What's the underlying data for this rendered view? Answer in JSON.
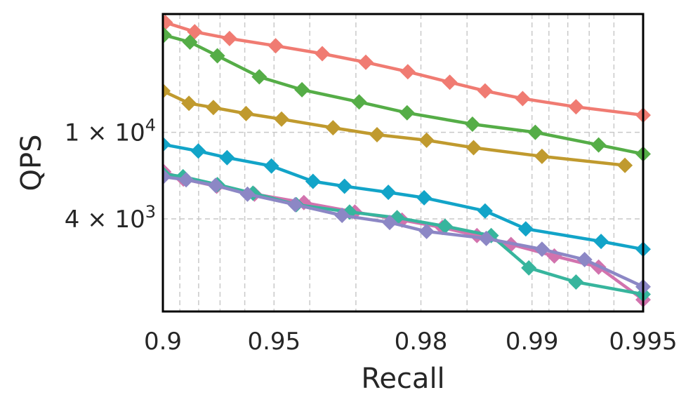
{
  "chart_data": {
    "type": "line",
    "title": "",
    "xlabel": "Recall",
    "ylabel": "QPS",
    "x_scale": "recall-log",
    "y_scale": "log",
    "xlim": [
      0.9,
      0.995
    ],
    "ylim": [
      1500,
      35000
    ],
    "grid": true,
    "x_ticks": [
      {
        "value": 0.9,
        "label": "0.9"
      },
      {
        "value": 0.95,
        "label": "0.95"
      },
      {
        "value": 0.98,
        "label": "0.98"
      },
      {
        "value": 0.99,
        "label": "0.99"
      },
      {
        "value": 0.995,
        "label": "0.995"
      }
    ],
    "x_minor_ticks": [
      0.91,
      0.92,
      0.93,
      0.94,
      0.96,
      0.97,
      0.985,
      0.991,
      0.992,
      0.993,
      0.994
    ],
    "y_ticks": [
      {
        "value": 10000,
        "label_base": "1 × 10",
        "label_exp": "4"
      },
      {
        "value": 4000,
        "label_base": "4 × 10",
        "label_exp": "3"
      }
    ],
    "marker": "diamond",
    "series": [
      {
        "color": "#f07b72",
        "x": [
          0.9015,
          0.918,
          0.934,
          0.9505,
          0.963,
          0.9718,
          0.9783,
          0.9833,
          0.9866,
          0.9894,
          0.9924,
          0.995
        ],
        "y": [
          32000,
          29000,
          27000,
          25000,
          23000,
          21000,
          19000,
          17000,
          15500,
          14300,
          13100,
          12000
        ]
      },
      {
        "color": "#55ad47",
        "x": [
          0.9007,
          0.9155,
          0.9288,
          0.9452,
          0.958,
          0.9706,
          0.9782,
          0.9855,
          0.9902,
          0.9934,
          0.995
        ],
        "y": [
          28000,
          26000,
          22500,
          18000,
          15700,
          13800,
          12300,
          10900,
          10000,
          8750,
          7950
        ]
      },
      {
        "color": "#c09a2e",
        "x": [
          0.9,
          0.915,
          0.927,
          0.9405,
          0.9523,
          0.9654,
          0.9737,
          0.9807,
          0.9856,
          0.9906,
          0.9944
        ],
        "y": [
          15500,
          13600,
          13000,
          12200,
          11500,
          10500,
          9750,
          9200,
          8500,
          7750,
          7050
        ]
      },
      {
        "color": "#12a4c8",
        "x": [
          0.9,
          0.9198,
          0.933,
          0.9492,
          0.9608,
          0.9678,
          0.9755,
          0.9804,
          0.9866,
          0.9896,
          0.9935,
          0.995
        ],
        "y": [
          8800,
          8200,
          7650,
          7000,
          5950,
          5650,
          5300,
          5000,
          4350,
          3600,
          3150,
          2900
        ]
      },
      {
        "color": "#d273ae",
        "x": [
          0.9005,
          0.912,
          0.9285,
          0.9435,
          0.9585,
          0.9698,
          0.9775,
          0.9825,
          0.9859,
          0.9886,
          0.9913,
          0.9934,
          0.995
        ],
        "y": [
          6600,
          6100,
          5650,
          5200,
          4750,
          4300,
          3950,
          3650,
          3350,
          3050,
          2700,
          2400,
          1700
        ]
      },
      {
        "color": "#37b59d",
        "x": [
          0.9,
          0.9118,
          0.9288,
          0.943,
          0.9565,
          0.9688,
          0.9768,
          0.9828,
          0.9871,
          0.9898,
          0.9924,
          0.995
        ],
        "y": [
          6450,
          6250,
          5750,
          5250,
          4650,
          4300,
          4050,
          3700,
          3350,
          2380,
          2050,
          1800
        ]
      },
      {
        "color": "#8c87c5",
        "x": [
          0.9002,
          0.9135,
          0.928,
          0.941,
          0.9562,
          0.9673,
          0.9757,
          0.9807,
          0.9867,
          0.9906,
          0.9928,
          0.995
        ],
        "y": [
          6250,
          6050,
          5700,
          5200,
          4650,
          4150,
          3850,
          3500,
          3250,
          2900,
          2600,
          1950
        ]
      }
    ]
  }
}
